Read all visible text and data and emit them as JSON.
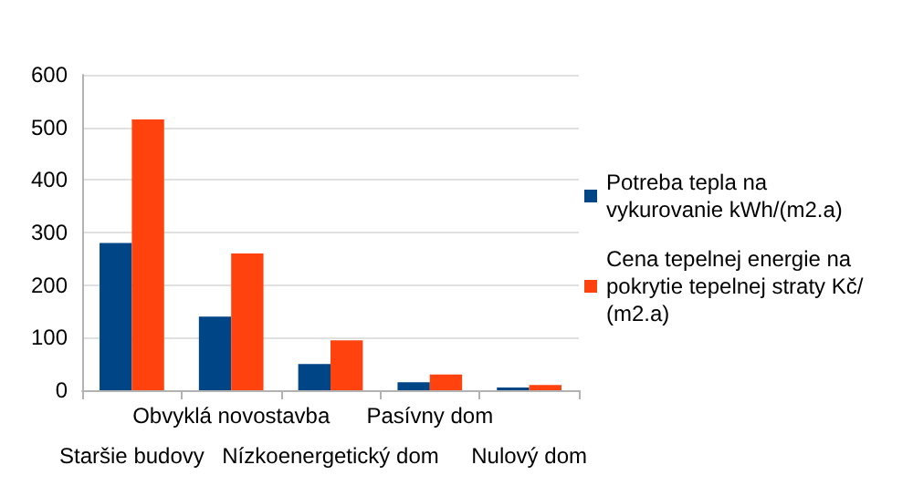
{
  "chart_data": {
    "type": "bar",
    "categories": [
      "Staršie budovy",
      "Obvyklá novostavba",
      "Nízkoenergetický dom",
      "Pasívny dom",
      "Nulový dom"
    ],
    "series": [
      {
        "name": "Potreba tepla na vykurovanie kWh/(m2.a)",
        "color": "#004586",
        "values": [
          280,
          140,
          50,
          15,
          5
        ]
      },
      {
        "name": "Cena tepelnej energie na pokrytie tepelnej straty Kč/(m2.a)",
        "color": "#ff420e",
        "values": [
          515,
          260,
          95,
          30,
          10
        ]
      }
    ],
    "ylim": [
      0,
      600
    ],
    "yticks": [
      0,
      100,
      200,
      300,
      400,
      500,
      600
    ],
    "grid": "y",
    "legend": "right"
  }
}
